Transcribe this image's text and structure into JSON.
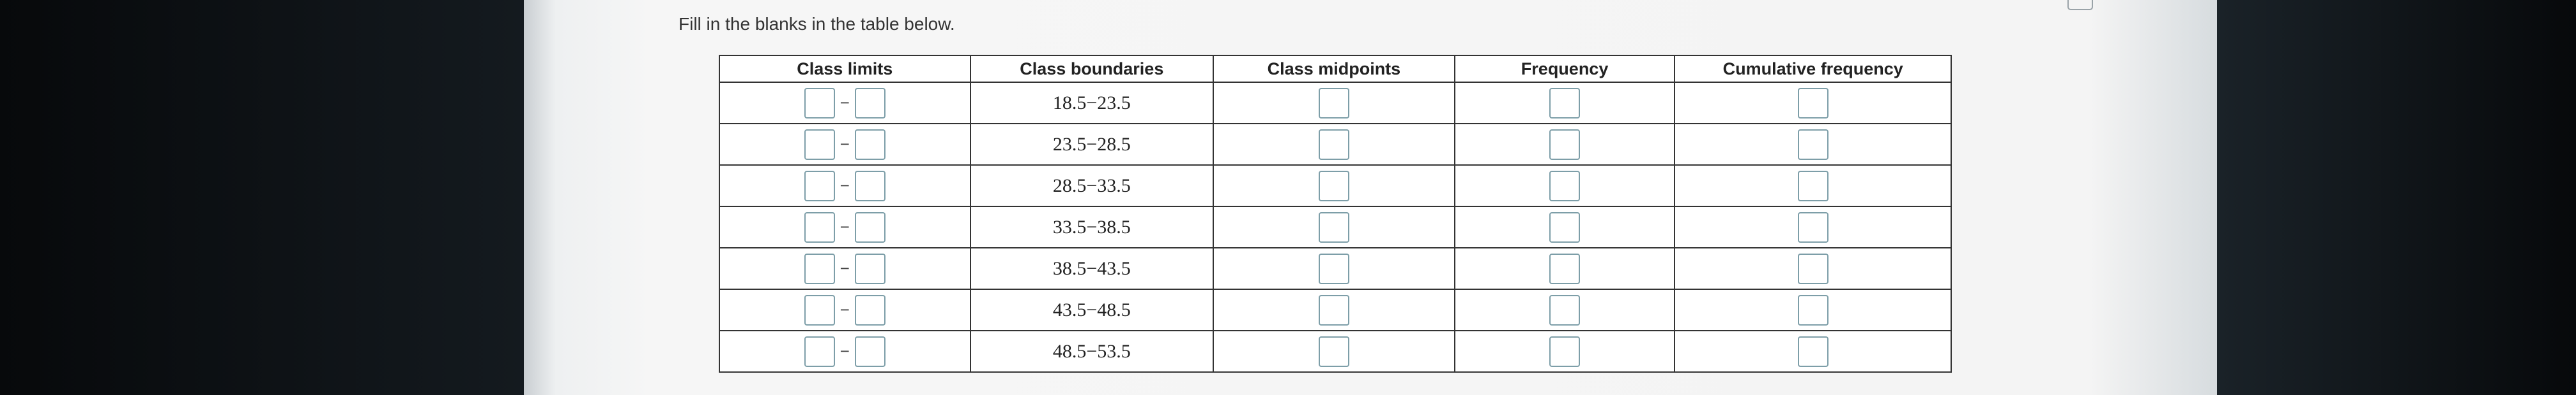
{
  "instruction": "Fill in the blanks in the table below.",
  "table": {
    "headers": [
      "Class limits",
      "Class boundaries",
      "Class midpoints",
      "Frequency",
      "Cumulative frequency"
    ],
    "limit_separator": "−",
    "boundaries": [
      "18.5−23.5",
      "23.5−28.5",
      "28.5−33.5",
      "33.5−38.5",
      "38.5−43.5",
      "43.5−48.5",
      "48.5−53.5"
    ]
  }
}
